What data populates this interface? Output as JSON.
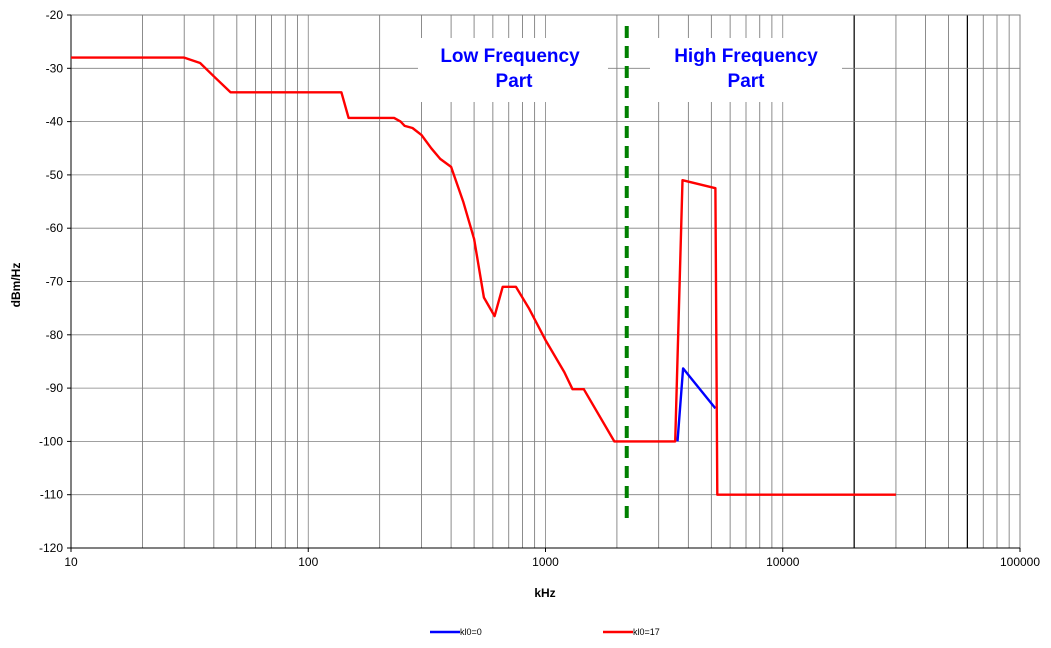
{
  "chart_data": {
    "type": "line",
    "title": "",
    "xlabel": "kHz",
    "ylabel": "dBm/Hz",
    "xscale": "log",
    "xlim": [
      10,
      100000
    ],
    "ylim": [
      -120,
      -20
    ],
    "x_ticks": [
      10,
      100,
      1000,
      10000,
      100000
    ],
    "x_tick_labels": [
      "10",
      "100",
      "1000",
      "10000",
      "100000"
    ],
    "y_ticks": [
      -20,
      -30,
      -40,
      -50,
      -60,
      -70,
      -80,
      -90,
      -100,
      -110,
      -120
    ],
    "y_tick_labels": [
      "-20",
      "-30",
      "-40",
      "-50",
      "-60",
      "-70",
      "-80",
      "-90",
      "-100",
      "-110",
      "-120"
    ],
    "grid": true,
    "legend_position": "bottom",
    "series": [
      {
        "name": "kl0=0",
        "color": "#0000ff",
        "points": [
          [
            3600,
            -100
          ],
          [
            3800,
            -86.3
          ],
          [
            5200,
            -93.8
          ]
        ]
      },
      {
        "name": "kl0=17",
        "color": "#ff0000",
        "points": [
          [
            10,
            -28
          ],
          [
            30,
            -28
          ],
          [
            35,
            -29
          ],
          [
            40,
            -31.5
          ],
          [
            47,
            -34.5
          ],
          [
            100,
            -34.5
          ],
          [
            138,
            -34.5
          ],
          [
            148,
            -39.3
          ],
          [
            230,
            -39.3
          ],
          [
            245,
            -40
          ],
          [
            255,
            -40.8
          ],
          [
            275,
            -41.2
          ],
          [
            300,
            -42.5
          ],
          [
            330,
            -45
          ],
          [
            360,
            -47
          ],
          [
            400,
            -48.5
          ],
          [
            450,
            -55
          ],
          [
            500,
            -62
          ],
          [
            550,
            -73
          ],
          [
            610,
            -76.5
          ],
          [
            660,
            -71
          ],
          [
            750,
            -71
          ],
          [
            850,
            -75
          ],
          [
            1000,
            -81
          ],
          [
            1200,
            -87
          ],
          [
            1300,
            -90.2
          ],
          [
            1450,
            -90.2
          ],
          [
            1950,
            -100
          ],
          [
            3500,
            -100
          ],
          [
            3520,
            -100
          ],
          [
            3780,
            -51
          ],
          [
            5200,
            -52.5
          ],
          [
            5300,
            -110
          ],
          [
            30000,
            -110
          ]
        ]
      }
    ],
    "annotations": [
      {
        "text": "Low Frequency",
        "color": "#0000ff"
      },
      {
        "text": "Part",
        "color": "#0000ff"
      },
      {
        "text": "High Frequency",
        "color": "#0000ff"
      },
      {
        "text": "Part",
        "color": "#0000ff"
      }
    ],
    "divider": {
      "x": 2200,
      "color": "#008000",
      "style": "dashed"
    },
    "extra_gridlines_x": [
      20000,
      60000
    ]
  }
}
